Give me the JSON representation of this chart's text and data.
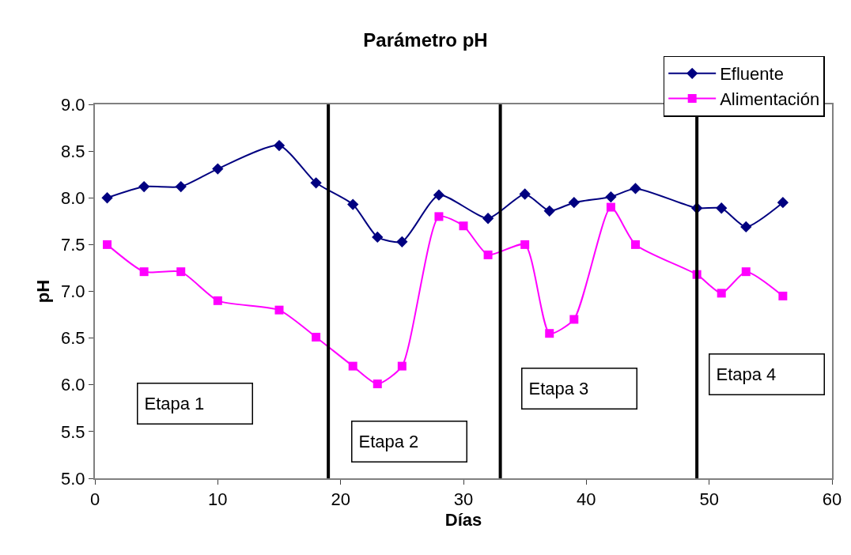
{
  "chart_data": {
    "type": "line",
    "title": "Parámetro pH",
    "xlabel": "Días",
    "ylabel": "pH",
    "x": [
      1,
      4,
      7,
      10,
      15,
      18,
      21,
      23,
      25,
      28,
      30,
      32,
      35,
      37,
      39,
      42,
      44,
      49,
      51,
      53,
      56
    ],
    "series": [
      {
        "name": "Efluente",
        "color": "#000080",
        "marker": "diamond",
        "values": [
          8.0,
          8.12,
          8.12,
          8.31,
          8.56,
          8.16,
          7.93,
          7.58,
          7.53,
          8.03,
          null,
          7.78,
          8.04,
          7.86,
          7.95,
          8.01,
          8.1,
          7.89,
          7.89,
          7.69,
          7.95
        ]
      },
      {
        "name": "Alimentación",
        "color": "#ff00ff",
        "marker": "square",
        "values": [
          7.5,
          7.21,
          7.21,
          6.9,
          6.8,
          6.51,
          6.2,
          6.01,
          6.2,
          7.8,
          7.7,
          7.39,
          7.5,
          6.55,
          6.7,
          7.9,
          7.5,
          7.18,
          6.98,
          7.21,
          6.95
        ]
      }
    ],
    "xlim": [
      0,
      60
    ],
    "xticks": [
      0,
      10,
      20,
      30,
      40,
      50,
      60
    ],
    "ylim": [
      5.0,
      9.0
    ],
    "yticks": [
      {
        "value": 5,
        "label": "5.0"
      },
      {
        "value": 5.5,
        "label": "5.5"
      },
      {
        "value": 6,
        "label": "6.0"
      },
      {
        "value": 6.5,
        "label": "6.5"
      },
      {
        "value": 7,
        "label": "7.0"
      },
      {
        "value": 7.5,
        "label": "7.5"
      },
      {
        "value": 8,
        "label": "8.0"
      },
      {
        "value": 8.5,
        "label": "8.5"
      },
      {
        "value": 9,
        "label": "9.0"
      }
    ],
    "ref_lines": [
      {
        "axis": "x",
        "value": 19,
        "color": "#000000"
      },
      {
        "axis": "x",
        "value": 33,
        "color": "#000000"
      },
      {
        "axis": "x",
        "value": 49,
        "color": "#000000"
      }
    ],
    "annotations": [
      "Etapa 1",
      "Etapa 2",
      "Etapa 3",
      "Etapa 4"
    ],
    "legend": "top right",
    "line_style": "solid"
  }
}
